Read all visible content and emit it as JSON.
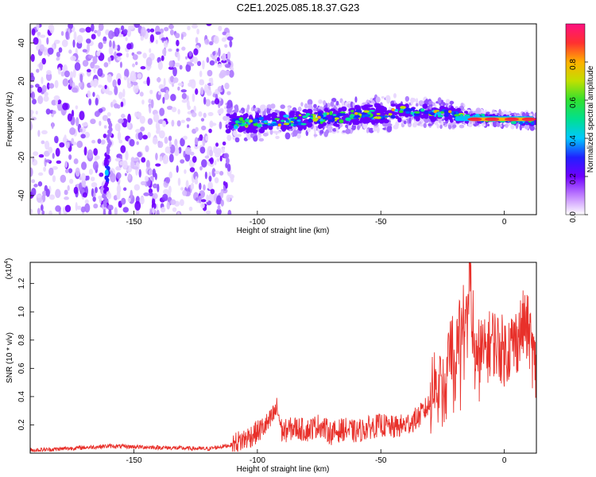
{
  "title": "C2E1.2025.085.18.37.G23",
  "chart_data": [
    {
      "type": "heatmap",
      "title": "C2E1.2025.085.18.37.G23",
      "xlabel": "Height of straight line (km)",
      "ylabel": "Frequency (Hz)",
      "xlim": [
        -192,
        13
      ],
      "ylim": [
        -50,
        50
      ],
      "xticks": [
        -150,
        -100,
        -50,
        0
      ],
      "yticks": [
        -40,
        -20,
        0,
        20,
        40
      ],
      "colorbar": {
        "label": "Normalized spectral amplitude",
        "range": [
          0.0,
          1.0
        ],
        "ticks": [
          "0.0",
          "0.2",
          "0.4",
          "0.6",
          "0.8"
        ],
        "colors": [
          "#ffffff",
          "#c080ff",
          "#7000ff",
          "#2020ff",
          "#00c8ff",
          "#00e090",
          "#30e030",
          "#c0e000",
          "#ffb000",
          "#ff3030",
          "#ff1080"
        ]
      },
      "features": {
        "noise_region_x": [
          -192,
          -110
        ],
        "tone_centerline": [
          [
            -112,
            -2
          ],
          [
            -100,
            -2
          ],
          [
            -80,
            0
          ],
          [
            -60,
            2
          ],
          [
            -40,
            4
          ],
          [
            -25,
            3
          ],
          [
            -15,
            1
          ],
          [
            0,
            0
          ],
          [
            13,
            -1
          ]
        ],
        "streak": {
          "x": -161,
          "y_range": [
            -45,
            0
          ],
          "peak_y": -28
        }
      }
    },
    {
      "type": "line",
      "xlabel": "Height of straight line (km)",
      "ylabel": "SNR (10 * v/v)",
      "yscale_label": "(x10",
      "yscale_exp": "4",
      "xlim": [
        -192,
        13
      ],
      "ylim": [
        0.0,
        1.35
      ],
      "xticks": [
        -150,
        -100,
        -50,
        0
      ],
      "yticks": [
        "0.2",
        "0.4",
        "0.6",
        "0.8",
        "1.0",
        "1.2"
      ],
      "series": [
        {
          "color": "#e8302a",
          "x": [
            -192,
            -180,
            -160,
            -140,
            -120,
            -110,
            -105,
            -100,
            -95,
            -92,
            -90,
            -85,
            -80,
            -75,
            -70,
            -65,
            -60,
            -55,
            -50,
            -45,
            -40,
            -35,
            -30,
            -28,
            -25,
            -22,
            -20,
            -18,
            -16,
            -14,
            -12,
            -10,
            -8,
            -5,
            0,
            5,
            8,
            10,
            13
          ],
          "y": [
            0.02,
            0.03,
            0.05,
            0.04,
            0.03,
            0.06,
            0.1,
            0.15,
            0.22,
            0.32,
            0.15,
            0.18,
            0.16,
            0.2,
            0.14,
            0.17,
            0.15,
            0.18,
            0.2,
            0.18,
            0.2,
            0.25,
            0.35,
            0.55,
            0.4,
            0.7,
            0.6,
            0.9,
            0.8,
            1.32,
            0.6,
            0.75,
            0.7,
            0.8,
            0.72,
            0.8,
            0.92,
            0.85,
            0.55
          ]
        }
      ]
    }
  ]
}
